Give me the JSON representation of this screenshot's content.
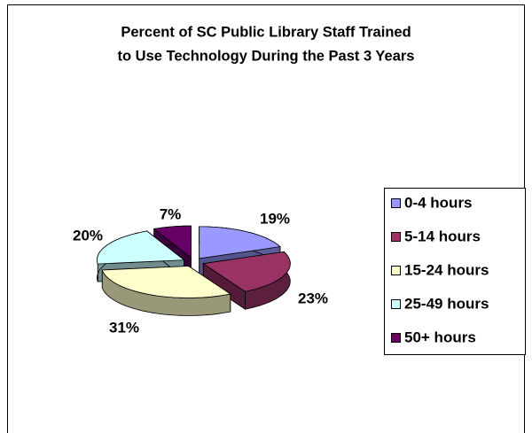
{
  "chart_data": {
    "type": "pie3d",
    "title": [
      "Percent of SC Public Library Staff Trained",
      "to Use Technology  During the Past 3 Years"
    ],
    "categories": [
      "0-4 hours",
      "5-14 hours",
      "15-24 hours",
      "25-49 hours",
      "50+ hours"
    ],
    "values": [
      19,
      23,
      31,
      20,
      7
    ],
    "value_labels": [
      "19%",
      "23%",
      "31%",
      "20%",
      "7%"
    ],
    "colors": [
      "#9999ff",
      "#993366",
      "#ffffcc",
      "#ccffff",
      "#660066"
    ],
    "legend": "right"
  }
}
